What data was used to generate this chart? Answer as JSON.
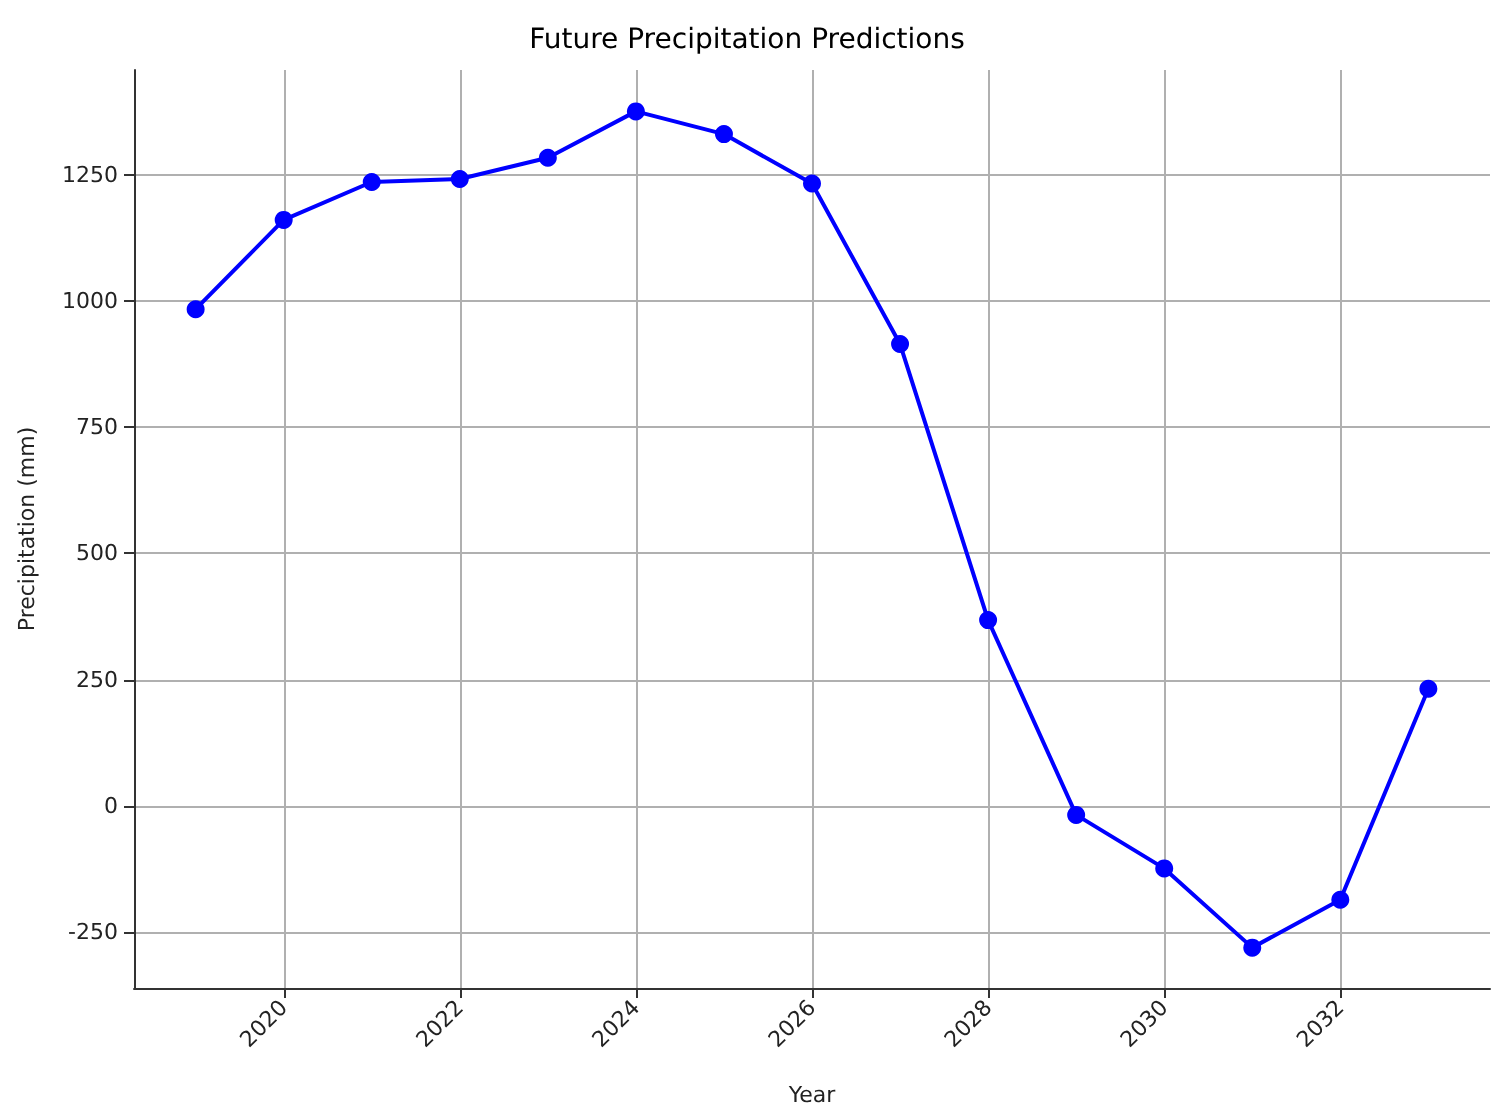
{
  "chart_data": {
    "type": "line",
    "title": "Future Precipitation Predictions",
    "xlabel": "Year",
    "ylabel": "Precipitation (mm)",
    "x": [
      2019,
      2020,
      2021,
      2022,
      2023,
      2024,
      2025,
      2026,
      2027,
      2028,
      2029,
      2030,
      2031,
      2032,
      2033
    ],
    "series": [
      {
        "color": "#0000ff",
        "values": [
          984,
          1161,
          1236,
          1242,
          1284,
          1376,
          1331,
          1233,
          915,
          368,
          -18,
          -124,
          -281,
          -186,
          232
        ]
      }
    ],
    "xlim": [
      2018.3,
      2033.7
    ],
    "xticks": [
      2020,
      2022,
      2024,
      2026,
      2028,
      2030,
      2032
    ],
    "ylim": [
      -361,
      1458
    ],
    "yticks": [
      -250,
      0,
      250,
      500,
      750,
      1000,
      1250
    ],
    "grid": true,
    "marker": "circle",
    "line_style": "solid"
  }
}
